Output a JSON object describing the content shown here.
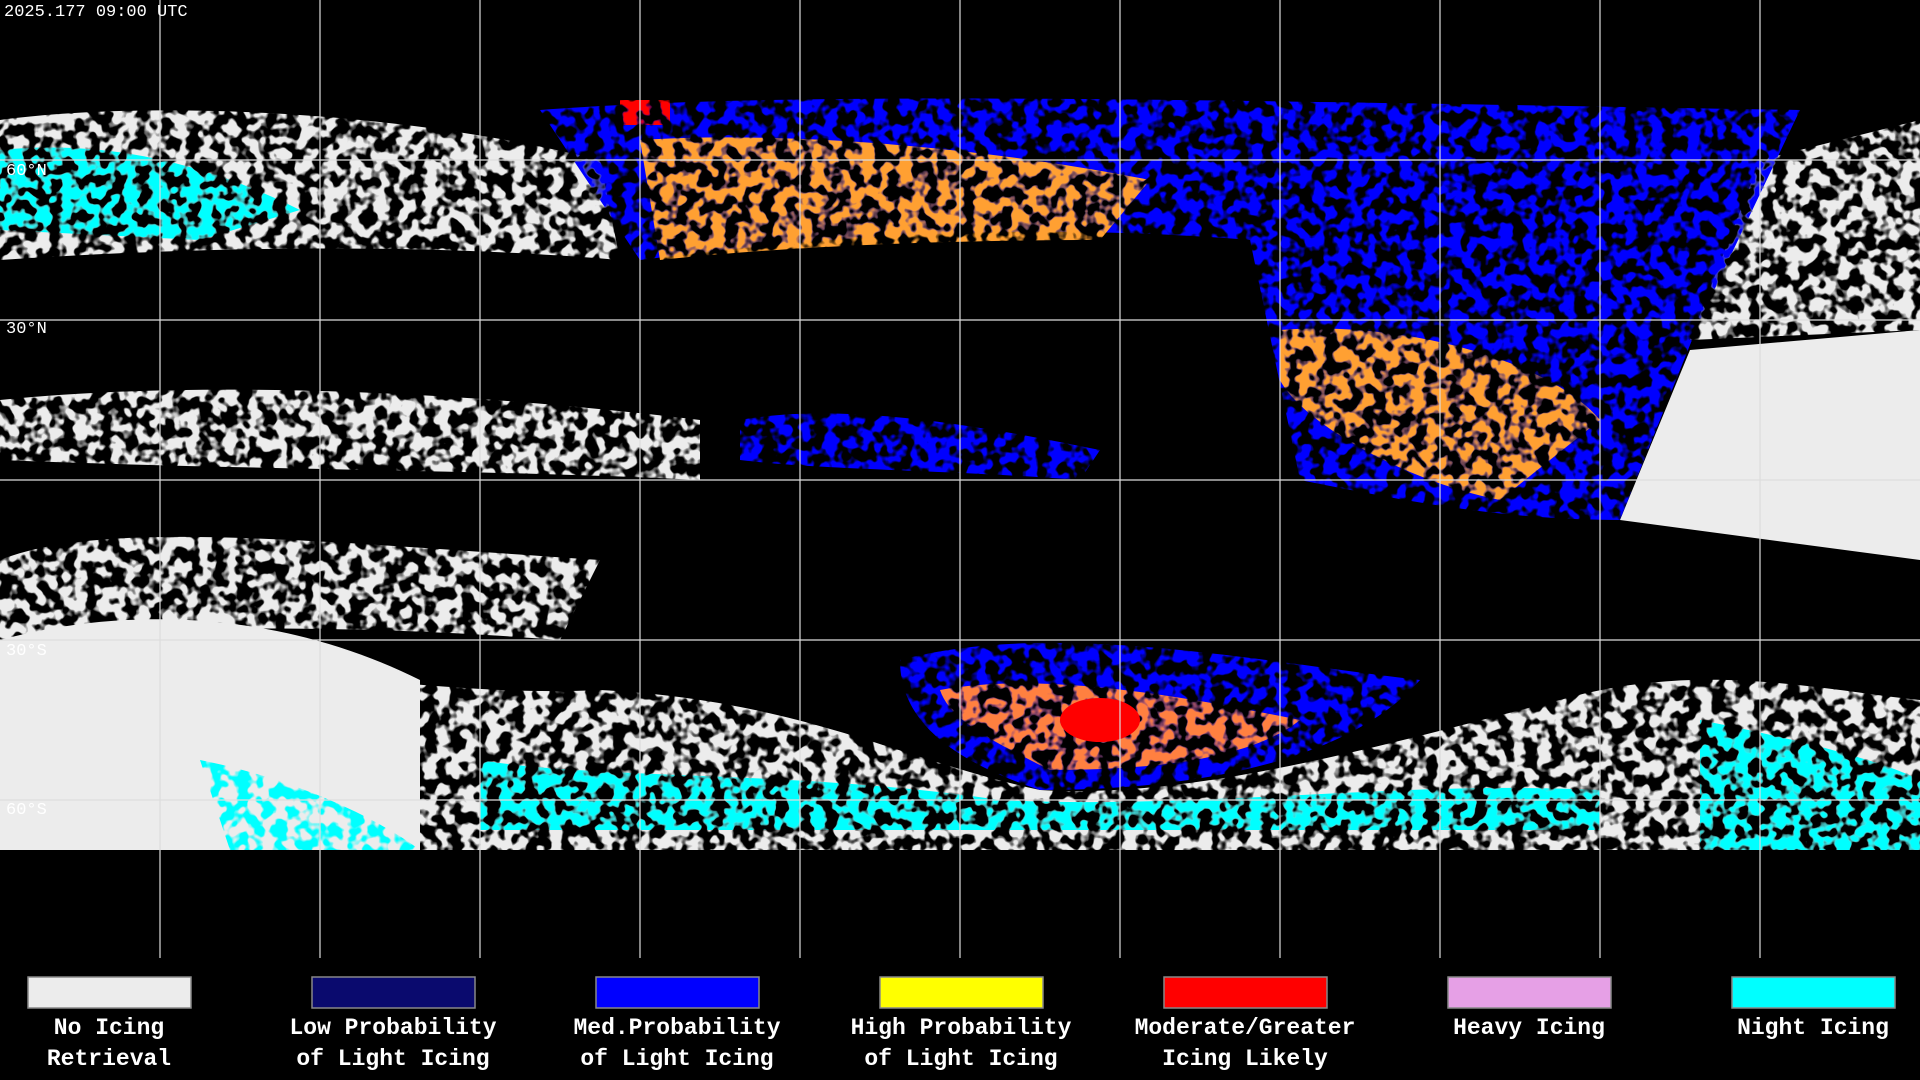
{
  "header": {
    "title": "2025.177 09:00 UTC"
  },
  "map": {
    "lat_labels": [
      "60°N",
      "30°N",
      "30°S",
      "60°S"
    ]
  },
  "legend": [
    {
      "label": [
        "No Icing",
        "Retrieval"
      ],
      "color": "#ececec"
    },
    {
      "label": [
        "Low Probability",
        "of Light Icing"
      ],
      "color": "#0a0a6e"
    },
    {
      "label": [
        "Med.Probability",
        "of Light Icing"
      ],
      "color": "#0000ff"
    },
    {
      "label": [
        "High Probability",
        "of Light Icing"
      ],
      "color": "#ffff00"
    },
    {
      "label": [
        "Moderate/Greater",
        "Icing Likely"
      ],
      "color": "#ff0000"
    },
    {
      "label": [
        "Heavy Icing",
        ""
      ],
      "color": "#e6a0e6"
    },
    {
      "label": [
        "Night Icing",
        ""
      ],
      "color": "#00ffff"
    }
  ]
}
